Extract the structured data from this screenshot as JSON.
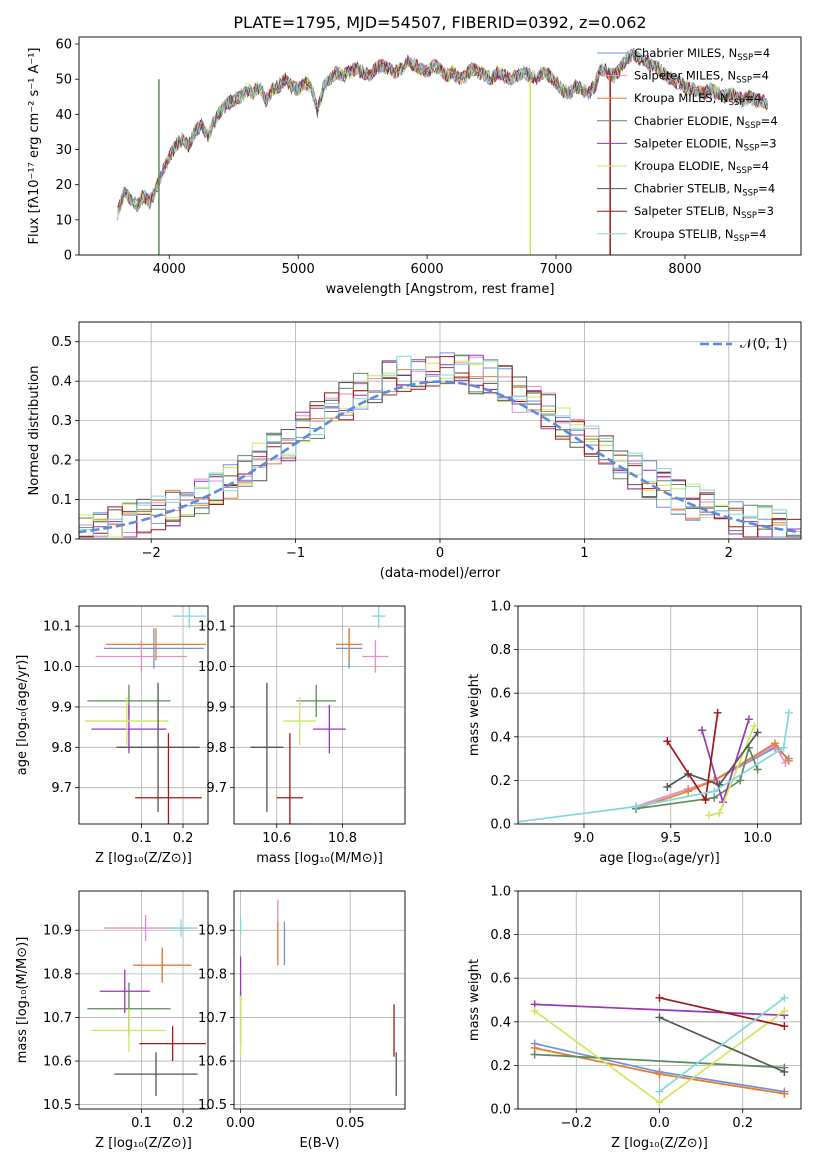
{
  "colors": {
    "Chabrier MILES": "#6f93d8",
    "Salpeter MILES": "#e58fc8",
    "Kroupa MILES": "#e67e2e",
    "Chabrier ELODIE": "#5d8a5d",
    "Salpeter ELODIE": "#9a35b5",
    "Kroupa ELODIE": "#cfe85a",
    "Chabrier STELIB": "#555555",
    "Salpeter STELIB": "#a01818",
    "Kroupa STELIB": "#80d8dc",
    "normal": "#5b8be0"
  },
  "chart_data": [
    {
      "id": "spectrum",
      "type": "line",
      "title": "PLATE=1795, MJD=54507, FIBERID=0392, z=0.062",
      "xlabel": "wavelength [Angstrom, rest frame]",
      "ylabel": "Flux [fλ10⁻¹⁷ erg cm⁻² s⁻¹ A⁻¹]",
      "xlim": [
        3300,
        8900
      ],
      "ylim": [
        0,
        62
      ],
      "xticks": [
        4000,
        5000,
        6000,
        7000,
        8000
      ],
      "yticks": [
        0,
        10,
        20,
        30,
        40,
        50,
        60
      ],
      "x": [
        3600,
        3650,
        3700,
        3750,
        3800,
        3850,
        3900,
        3950,
        4000,
        4050,
        4100,
        4150,
        4200,
        4250,
        4300,
        4350,
        4400,
        4450,
        4500,
        4550,
        4600,
        4650,
        4700,
        4750,
        4800,
        4850,
        4900,
        4950,
        5000,
        5050,
        5100,
        5150,
        5200,
        5250,
        5300,
        5350,
        5400,
        5450,
        5500,
        5550,
        5600,
        5650,
        5700,
        5750,
        5800,
        5850,
        5900,
        5950,
        6000,
        6050,
        6100,
        6150,
        6200,
        6250,
        6300,
        6350,
        6400,
        6450,
        6500,
        6550,
        6600,
        6650,
        6700,
        6750,
        6800,
        6850,
        6900,
        6950,
        7000,
        7050,
        7100,
        7150,
        7200,
        7250,
        7300,
        7350,
        7400,
        7450,
        7500,
        7550,
        7600,
        7650,
        7700,
        7750,
        7800,
        7850,
        7900,
        7950,
        8000,
        8050,
        8100,
        8150,
        8200,
        8250,
        8300,
        8350,
        8400,
        8450,
        8500,
        8550,
        8600,
        8650
      ],
      "y": [
        12,
        18,
        16,
        14,
        17,
        15,
        19,
        24,
        28,
        31,
        33,
        31,
        35,
        37,
        34,
        38,
        41,
        43,
        44,
        45,
        47,
        46,
        48,
        44,
        47,
        48,
        50,
        48,
        47,
        49,
        48,
        41,
        48,
        50,
        52,
        51,
        52,
        53,
        52,
        51,
        53,
        54,
        53,
        52,
        53,
        55,
        54,
        53,
        52,
        54,
        53,
        51,
        52,
        50,
        51,
        53,
        52,
        51,
        50,
        52,
        51,
        50,
        51,
        52,
        51,
        50,
        52,
        51,
        49,
        47,
        46,
        48,
        47,
        46,
        48,
        53,
        52,
        51,
        53,
        56,
        57,
        56,
        55,
        54,
        53,
        51,
        50,
        49,
        48,
        47,
        47,
        46,
        47,
        46,
        45,
        46,
        45,
        44,
        45,
        44,
        44,
        43
      ],
      "legend": [
        {
          "name": "Chabrier MILES",
          "nssp": "4"
        },
        {
          "name": "Salpeter MILES",
          "nssp": "4"
        },
        {
          "name": "Kroupa MILES",
          "nssp": "4"
        },
        {
          "name": "Chabrier ELODIE",
          "nssp": "4"
        },
        {
          "name": "Salpeter ELODIE",
          "nssp": "3"
        },
        {
          "name": "Kroupa ELODIE",
          "nssp": "4"
        },
        {
          "name": "Chabrier STELIB",
          "nssp": "4"
        },
        {
          "name": "Salpeter STELIB",
          "nssp": "3"
        },
        {
          "name": "Kroupa STELIB",
          "nssp": "4"
        }
      ],
      "legend_placement": "right"
    },
    {
      "id": "residuals",
      "type": "histogram",
      "xlabel": "(data-model)/error",
      "ylabel": "Normed distribution",
      "xlim": [
        -2.5,
        2.5
      ],
      "ylim": [
        0,
        0.55
      ],
      "xticks": [
        -2,
        -1,
        0,
        1,
        2
      ],
      "yticks": [
        0.0,
        0.1,
        0.2,
        0.3,
        0.4,
        0.5
      ],
      "grid": true,
      "legend": "𝒩(0, 1)",
      "legend_placement": "top-right",
      "bin_width": 0.1
    },
    {
      "id": "age-vs-Z",
      "type": "errorbar",
      "xlabel": "Z [log₁₀(Z/Z⊙)]",
      "ylabel": "age  [log₁₀(age/yr)]",
      "xlim": [
        -0.05,
        0.26
      ],
      "ylim": [
        9.61,
        10.15
      ],
      "xticks": [
        0.1,
        0.2
      ],
      "yticks": [
        9.7,
        9.8,
        9.9,
        10.0,
        10.1
      ],
      "grid": true,
      "points": [
        {
          "model": "Chabrier MILES",
          "x": 0.13,
          "xerr": 0.12,
          "y": 10.045,
          "yerr": 0.05
        },
        {
          "model": "Salpeter MILES",
          "x": 0.1,
          "xerr": 0.11,
          "y": 10.025,
          "yerr": 0.04
        },
        {
          "model": "Kroupa MILES",
          "x": 0.135,
          "xerr": 0.12,
          "y": 10.055,
          "yerr": 0.04
        },
        {
          "model": "Chabrier ELODIE",
          "x": 0.07,
          "xerr": 0.1,
          "y": 9.915,
          "yerr": 0.04
        },
        {
          "model": "Salpeter ELODIE",
          "x": 0.07,
          "xerr": 0.09,
          "y": 9.845,
          "yerr": 0.06
        },
        {
          "model": "Kroupa ELODIE",
          "x": 0.065,
          "xerr": 0.1,
          "y": 9.865,
          "yerr": 0.06
        },
        {
          "model": "Chabrier STELIB",
          "x": 0.14,
          "xerr": 0.1,
          "y": 9.8,
          "yerr": 0.16
        },
        {
          "model": "Salpeter STELIB",
          "x": 0.165,
          "xerr": 0.08,
          "y": 9.675,
          "yerr": 0.16
        },
        {
          "model": "Kroupa STELIB",
          "x": 0.215,
          "xerr": 0.04,
          "y": 10.125,
          "yerr": 0.03
        }
      ]
    },
    {
      "id": "age-vs-mass",
      "type": "errorbar",
      "xlabel": "mass [log₁₀(M/M⊙)]",
      "ylabel": "",
      "xlim": [
        10.47,
        10.99
      ],
      "ylim": [
        9.61,
        10.15
      ],
      "xticks": [
        10.6,
        10.8
      ],
      "yticks": [
        9.7,
        9.8,
        9.9,
        10.0,
        10.1
      ],
      "grid": true,
      "points": [
        {
          "model": "Chabrier MILES",
          "x": 10.82,
          "xerr": 0.04,
          "y": 10.045,
          "yerr": 0.05
        },
        {
          "model": "Salpeter MILES",
          "x": 10.9,
          "xerr": 0.04,
          "y": 10.025,
          "yerr": 0.04
        },
        {
          "model": "Kroupa MILES",
          "x": 10.82,
          "xerr": 0.04,
          "y": 10.055,
          "yerr": 0.04
        },
        {
          "model": "Chabrier ELODIE",
          "x": 10.72,
          "xerr": 0.06,
          "y": 9.915,
          "yerr": 0.04
        },
        {
          "model": "Salpeter ELODIE",
          "x": 10.76,
          "xerr": 0.05,
          "y": 9.845,
          "yerr": 0.06
        },
        {
          "model": "Kroupa ELODIE",
          "x": 10.67,
          "xerr": 0.05,
          "y": 9.865,
          "yerr": 0.06
        },
        {
          "model": "Chabrier STELIB",
          "x": 10.57,
          "xerr": 0.05,
          "y": 9.8,
          "yerr": 0.16
        },
        {
          "model": "Salpeter STELIB",
          "x": 10.64,
          "xerr": 0.04,
          "y": 9.675,
          "yerr": 0.16
        },
        {
          "model": "Kroupa STELIB",
          "x": 10.91,
          "xerr": 0.02,
          "y": 10.125,
          "yerr": 0.03
        }
      ]
    },
    {
      "id": "weights-vs-age",
      "type": "line",
      "xlabel": "age  [log₁₀(age/yr)]",
      "ylabel": "mass weight",
      "xlim": [
        8.62,
        10.25
      ],
      "ylim": [
        0.0,
        1.0
      ],
      "xticks": [
        9.0,
        9.5,
        10.0
      ],
      "yticks": [
        0.0,
        0.2,
        0.4,
        0.6,
        0.8,
        1.0
      ],
      "grid": true,
      "series": [
        {
          "model": "Chabrier MILES",
          "x": [
            9.3,
            9.6,
            9.75,
            10.1,
            10.18
          ],
          "y": [
            0.08,
            0.16,
            0.2,
            0.35,
            0.3
          ]
        },
        {
          "model": "Salpeter MILES",
          "x": [
            9.3,
            9.6,
            9.75,
            10.1,
            10.16
          ],
          "y": [
            0.08,
            0.16,
            0.2,
            0.36,
            0.28
          ]
        },
        {
          "model": "Kroupa MILES",
          "x": [
            9.3,
            9.6,
            9.75,
            10.1,
            10.18
          ],
          "y": [
            0.07,
            0.15,
            0.2,
            0.37,
            0.29
          ]
        },
        {
          "model": "Chabrier ELODIE",
          "x": [
            9.3,
            9.75,
            9.9,
            9.95,
            10.0
          ],
          "y": [
            0.07,
            0.12,
            0.2,
            0.35,
            0.25
          ]
        },
        {
          "model": "Salpeter ELODIE",
          "x": [
            9.68,
            9.8,
            9.95
          ],
          "y": [
            0.43,
            0.1,
            0.48
          ]
        },
        {
          "model": "Kroupa ELODIE",
          "x": [
            9.72,
            9.78,
            9.98
          ],
          "y": [
            0.04,
            0.05,
            0.45
          ]
        },
        {
          "model": "Chabrier STELIB",
          "x": [
            9.48,
            9.6,
            9.78,
            10.0
          ],
          "y": [
            0.17,
            0.23,
            0.18,
            0.42
          ]
        },
        {
          "model": "Salpeter STELIB",
          "x": [
            9.48,
            9.7,
            9.77
          ],
          "y": [
            0.38,
            0.11,
            0.51
          ]
        },
        {
          "model": "Kroupa STELIB",
          "x": [
            8.62,
            9.3,
            9.75,
            10.15,
            10.18
          ],
          "y": [
            0.01,
            0.08,
            0.15,
            0.35,
            0.51
          ]
        }
      ]
    },
    {
      "id": "mass-vs-Z",
      "type": "errorbar",
      "xlabel": "Z [log₁₀(Z/Z⊙)]",
      "ylabel": "mass [log₁₀(M/M⊙)]",
      "xlim": [
        -0.05,
        0.26
      ],
      "ylim": [
        10.49,
        10.99
      ],
      "xticks": [
        0.1,
        0.2
      ],
      "yticks": [
        10.5,
        10.6,
        10.7,
        10.8,
        10.9
      ],
      "grid": true,
      "points": [
        {
          "model": "Chabrier MILES",
          "x": 0.15,
          "xerr": 0.07,
          "y": 10.82,
          "yerr": 0.04
        },
        {
          "model": "Salpeter MILES",
          "x": 0.11,
          "xerr": 0.1,
          "y": 10.905,
          "yerr": 0.03
        },
        {
          "model": "Kroupa MILES",
          "x": 0.15,
          "xerr": 0.07,
          "y": 10.82,
          "yerr": 0.04
        },
        {
          "model": "Chabrier ELODIE",
          "x": 0.07,
          "xerr": 0.1,
          "y": 10.72,
          "yerr": 0.06
        },
        {
          "model": "Salpeter ELODIE",
          "x": 0.06,
          "xerr": 0.06,
          "y": 10.76,
          "yerr": 0.05
        },
        {
          "model": "Kroupa ELODIE",
          "x": 0.07,
          "xerr": 0.09,
          "y": 10.67,
          "yerr": 0.05
        },
        {
          "model": "Chabrier STELIB",
          "x": 0.135,
          "xerr": 0.1,
          "y": 10.57,
          "yerr": 0.05
        },
        {
          "model": "Salpeter STELIB",
          "x": 0.175,
          "xerr": 0.08,
          "y": 10.64,
          "yerr": 0.04
        },
        {
          "model": "Kroupa STELIB",
          "x": 0.195,
          "xerr": 0.04,
          "y": 10.905,
          "yerr": 0.02
        }
      ]
    },
    {
      "id": "mass-vs-EBV",
      "type": "errorbar",
      "xlabel": "E(B-V)",
      "ylabel": "",
      "xlim": [
        -0.003,
        0.075
      ],
      "ylim": [
        10.49,
        10.99
      ],
      "xticks": [
        0.0,
        0.05
      ],
      "yticks": [
        10.5,
        10.6,
        10.7,
        10.8,
        10.9
      ],
      "grid": true,
      "points": [
        {
          "model": "Chabrier MILES",
          "x": 0.02,
          "xerr": 0.0,
          "y": 10.87,
          "yerr": 0.05
        },
        {
          "model": "Salpeter MILES",
          "x": 0.017,
          "xerr": 0.0,
          "y": 10.9,
          "yerr": 0.07
        },
        {
          "model": "Kroupa MILES",
          "x": 0.017,
          "xerr": 0.0,
          "y": 10.87,
          "yerr": 0.05
        },
        {
          "model": "Chabrier ELODIE",
          "x": 0.0,
          "xerr": 0.0,
          "y": 10.7,
          "yerr": 0.06
        },
        {
          "model": "Salpeter ELODIE",
          "x": 0.0,
          "xerr": 0.0,
          "y": 10.79,
          "yerr": 0.05
        },
        {
          "model": "Kroupa ELODIE",
          "x": 0.0,
          "xerr": 0.0,
          "y": 10.68,
          "yerr": 0.07
        },
        {
          "model": "Chabrier STELIB",
          "x": 0.071,
          "xerr": 0.0,
          "y": 10.57,
          "yerr": 0.05
        },
        {
          "model": "Salpeter STELIB",
          "x": 0.07,
          "xerr": 0.0,
          "y": 10.67,
          "yerr": 0.06
        },
        {
          "model": "Kroupa STELIB",
          "x": 0.0,
          "xerr": 0.0,
          "y": 10.91,
          "yerr": 0.02
        }
      ]
    },
    {
      "id": "weights-vs-Z",
      "type": "line",
      "xlabel": "Z [log₁₀(Z/Z⊙)]",
      "ylabel": "mass weight",
      "xlim": [
        -0.34,
        0.34
      ],
      "ylim": [
        0.0,
        1.0
      ],
      "xticks": [
        -0.2,
        0.0,
        0.2
      ],
      "yticks": [
        0.0,
        0.2,
        0.4,
        0.6,
        0.8,
        1.0
      ],
      "grid": true,
      "series": [
        {
          "model": "Chabrier MILES",
          "x": [
            -0.3,
            0.0,
            0.3
          ],
          "y": [
            0.3,
            0.17,
            0.08
          ]
        },
        {
          "model": "Salpeter MILES",
          "x": [
            -0.3,
            0.0,
            0.3
          ],
          "y": [
            0.28,
            0.16,
            0.07
          ]
        },
        {
          "model": "Kroupa MILES",
          "x": [
            -0.3,
            0.0,
            0.3
          ],
          "y": [
            0.28,
            0.16,
            0.07
          ]
        },
        {
          "model": "Chabrier ELODIE",
          "x": [
            -0.3,
            0.3
          ],
          "y": [
            0.25,
            0.19
          ]
        },
        {
          "model": "Salpeter ELODIE",
          "x": [
            -0.3,
            0.3
          ],
          "y": [
            0.48,
            0.43
          ]
        },
        {
          "model": "Kroupa ELODIE",
          "x": [
            -0.3,
            0.0,
            0.3
          ],
          "y": [
            0.45,
            0.03,
            0.45
          ]
        },
        {
          "model": "Chabrier STELIB",
          "x": [
            0.0,
            0.3
          ],
          "y": [
            0.42,
            0.17
          ]
        },
        {
          "model": "Salpeter STELIB",
          "x": [
            0.0,
            0.3
          ],
          "y": [
            0.51,
            0.38
          ]
        },
        {
          "model": "Kroupa STELIB",
          "x": [
            0.0,
            0.3
          ],
          "y": [
            0.08,
            0.51
          ]
        }
      ]
    }
  ]
}
